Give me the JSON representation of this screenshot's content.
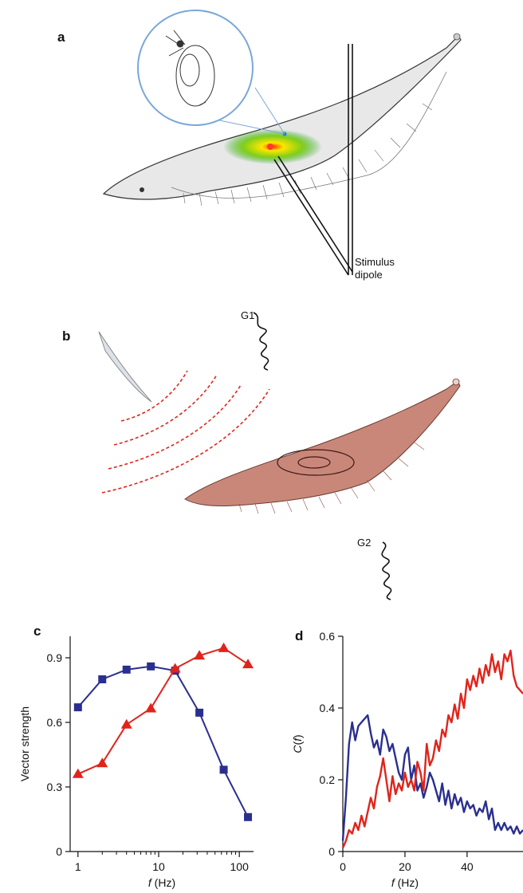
{
  "panels": {
    "a": {
      "letter": "a",
      "stimulus_label_1": "Stimulus",
      "stimulus_label_2": "dipole"
    },
    "b": {
      "letter": "b",
      "g1": "G1",
      "g2": "G2"
    },
    "c": {
      "letter": "c"
    },
    "d": {
      "letter": "d"
    }
  },
  "colors": {
    "blue": "#2a2f8f",
    "red": "#e0241b",
    "fish_brown": "#c9877a"
  },
  "chart_data": [
    {
      "type": "line",
      "panel": "c",
      "xlabel_main": "f",
      "xlabel_unit": " (Hz)",
      "ylabel": "Vector strength",
      "xscale": "log",
      "xlim": [
        0.8,
        150
      ],
      "ylim": [
        0,
        1.0
      ],
      "xticks": [
        1,
        10,
        100
      ],
      "xtick_labels": [
        "1",
        "10",
        "100"
      ],
      "yticks": [
        0,
        0.3,
        0.6,
        0.9
      ],
      "ytick_labels": [
        "0",
        "0.3",
        "0.6",
        "0.9"
      ],
      "series": [
        {
          "color": "#2a2f8f",
          "marker": "square",
          "x": [
            1,
            2,
            4,
            8,
            16,
            32,
            64,
            128
          ],
          "y": [
            0.67,
            0.8,
            0.845,
            0.86,
            0.84,
            0.645,
            0.38,
            0.16
          ]
        },
        {
          "color": "#e0241b",
          "marker": "triangle",
          "x": [
            1,
            2,
            4,
            8,
            16,
            32,
            64,
            128
          ],
          "y": [
            0.36,
            0.41,
            0.59,
            0.665,
            0.85,
            0.91,
            0.945,
            0.87
          ]
        }
      ]
    },
    {
      "type": "line",
      "panel": "d",
      "xlabel_main": "f",
      "xlabel_unit": " (Hz)",
      "ylabel_main": "C",
      "ylabel_arg": "f",
      "xlim": [
        0,
        58
      ],
      "ylim": [
        0,
        0.6
      ],
      "xticks": [
        0,
        20,
        40
      ],
      "xtick_labels": [
        "0",
        "20",
        "40"
      ],
      "yticks": [
        0,
        0.2,
        0.4,
        0.6
      ],
      "ytick_labels": [
        "0",
        "0.2",
        "0.4",
        "0.6"
      ],
      "series": [
        {
          "color": "#2a2f8f",
          "x": [
            0,
            1,
            2,
            3,
            4,
            5,
            6,
            7,
            8,
            9,
            10,
            11,
            12,
            13,
            14,
            15,
            16,
            17,
            18,
            19,
            20,
            21,
            22,
            23,
            24,
            25,
            26,
            27,
            28,
            29,
            30,
            31,
            32,
            33,
            34,
            35,
            36,
            37,
            38,
            39,
            40,
            41,
            42,
            43,
            44,
            45,
            46,
            47,
            48,
            49,
            50,
            51,
            52,
            53,
            54,
            55,
            56,
            57,
            58
          ],
          "y": [
            0.03,
            0.15,
            0.3,
            0.36,
            0.31,
            0.35,
            0.36,
            0.37,
            0.38,
            0.33,
            0.29,
            0.31,
            0.27,
            0.34,
            0.32,
            0.28,
            0.3,
            0.26,
            0.22,
            0.2,
            0.27,
            0.29,
            0.2,
            0.24,
            0.17,
            0.19,
            0.15,
            0.18,
            0.22,
            0.2,
            0.17,
            0.14,
            0.19,
            0.13,
            0.17,
            0.12,
            0.16,
            0.13,
            0.15,
            0.11,
            0.14,
            0.12,
            0.13,
            0.1,
            0.12,
            0.11,
            0.14,
            0.09,
            0.12,
            0.06,
            0.08,
            0.06,
            0.08,
            0.06,
            0.07,
            0.05,
            0.07,
            0.05,
            0.06
          ]
        },
        {
          "color": "#e0241b",
          "x": [
            0,
            1,
            2,
            3,
            4,
            5,
            6,
            7,
            8,
            9,
            10,
            11,
            12,
            13,
            14,
            15,
            16,
            17,
            18,
            19,
            20,
            21,
            22,
            23,
            24,
            25,
            26,
            27,
            28,
            29,
            30,
            31,
            32,
            33,
            34,
            35,
            36,
            37,
            38,
            39,
            40,
            41,
            42,
            43,
            44,
            45,
            46,
            47,
            48,
            49,
            50,
            51,
            52,
            53,
            54,
            55,
            56,
            57,
            58
          ],
          "y": [
            0.01,
            0.03,
            0.06,
            0.05,
            0.08,
            0.06,
            0.1,
            0.07,
            0.11,
            0.15,
            0.12,
            0.18,
            0.21,
            0.26,
            0.2,
            0.14,
            0.21,
            0.16,
            0.19,
            0.17,
            0.22,
            0.18,
            0.2,
            0.17,
            0.25,
            0.22,
            0.17,
            0.3,
            0.24,
            0.26,
            0.31,
            0.28,
            0.34,
            0.32,
            0.38,
            0.36,
            0.41,
            0.37,
            0.44,
            0.4,
            0.48,
            0.45,
            0.49,
            0.46,
            0.51,
            0.47,
            0.52,
            0.49,
            0.55,
            0.5,
            0.53,
            0.48,
            0.55,
            0.53,
            0.56,
            0.49,
            0.46,
            0.45,
            0.44
          ]
        }
      ]
    }
  ]
}
